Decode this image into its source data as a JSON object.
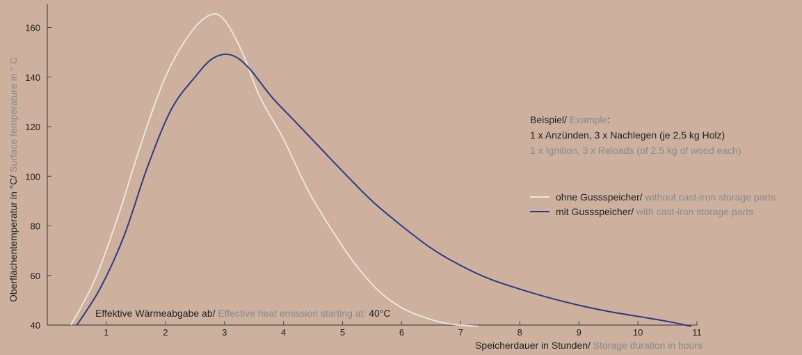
{
  "chart_data": {
    "type": "line",
    "ylabel": {
      "de": "Oberflächentemperatur in °C/",
      "en": " Surface temperature in ° C"
    },
    "xlabel": {
      "de": "Speicherdauer in Stunden/",
      "en": " Storage duration in hours"
    },
    "xlim": [
      0,
      11
    ],
    "ylim": [
      40,
      168
    ],
    "x_ticks": [
      "1",
      "2",
      "3",
      "4",
      "5",
      "6",
      "7",
      "8",
      "9",
      "10",
      "11"
    ],
    "y_ticks": [
      "40",
      "60",
      "80",
      "100",
      "120",
      "140",
      "160"
    ],
    "example": {
      "heading_de": "Beispiel/",
      "heading_en": " Example",
      "heading_colon": ":",
      "line_de": "1 x Anzünden, 3 x Nachlegen (je 2,5 kg Holz)",
      "line_en": "1 x Ignition, 3 x Reloads (of 2.5 kg of wood each)"
    },
    "annotation": {
      "de": "Effektive Wärmeabgabe ab/",
      "en": " Effective heat emission starting at:",
      "value": " 40°C"
    },
    "series": [
      {
        "name_de": "ohne Gussspeicher/",
        "name_en": " without cast-iron storage parts",
        "color": "#ece4de",
        "points": [
          [
            0.4,
            40
          ],
          [
            0.8,
            58
          ],
          [
            1.2,
            84
          ],
          [
            1.6,
            114
          ],
          [
            2.0,
            140
          ],
          [
            2.4,
            157
          ],
          [
            2.75,
            165
          ],
          [
            3.0,
            163
          ],
          [
            3.3,
            150
          ],
          [
            3.6,
            132
          ],
          [
            4.0,
            115
          ],
          [
            4.4,
            95
          ],
          [
            4.8,
            79
          ],
          [
            5.2,
            65
          ],
          [
            5.6,
            54
          ],
          [
            6.0,
            47
          ],
          [
            6.4,
            43
          ],
          [
            6.8,
            40.5
          ],
          [
            7.3,
            39.5
          ]
        ]
      },
      {
        "name_de": "mit Gussspeicher/",
        "name_en": " with cast-iron storage parts",
        "color": "#2d3a80",
        "points": [
          [
            0.5,
            40
          ],
          [
            0.9,
            55
          ],
          [
            1.3,
            76
          ],
          [
            1.7,
            104
          ],
          [
            2.1,
            127
          ],
          [
            2.5,
            140
          ],
          [
            2.8,
            147.5
          ],
          [
            3.1,
            149
          ],
          [
            3.4,
            144
          ],
          [
            3.8,
            132
          ],
          [
            4.2,
            122
          ],
          [
            4.6,
            112
          ],
          [
            5.0,
            102
          ],
          [
            5.5,
            90
          ],
          [
            6.0,
            80
          ],
          [
            6.5,
            71
          ],
          [
            7.0,
            64
          ],
          [
            7.5,
            58.5
          ],
          [
            8.0,
            54.5
          ],
          [
            8.5,
            51
          ],
          [
            9.0,
            48
          ],
          [
            9.5,
            45.5
          ],
          [
            10.0,
            43.5
          ],
          [
            10.5,
            41.5
          ],
          [
            10.9,
            39.5
          ]
        ]
      }
    ]
  }
}
